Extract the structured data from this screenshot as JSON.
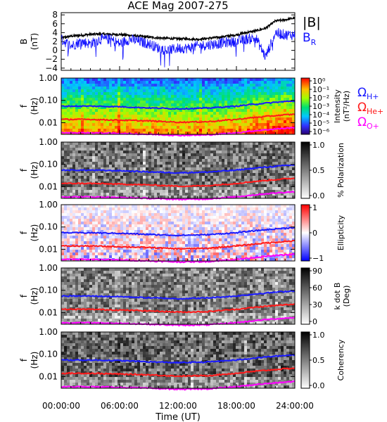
{
  "title": "ACE Mag 2007-275",
  "xlabel": "Time (UT)",
  "x_tick_labels": [
    "00:00:00",
    "06:00:00",
    "12:00:00",
    "18:00:00",
    "24:00:00"
  ],
  "colors": {
    "btotal": "#000000",
    "br": "#1010ff",
    "h_plus": "#1a1aff",
    "he_plus": "#ff1a1a",
    "o_plus": "#ff00ff"
  },
  "legends": {
    "b_total": "|B|",
    "b_r": "B",
    "b_r_sub": "R",
    "omega": "Ω",
    "h_sub": "H+",
    "he_sub": "He+",
    "o_sub": "O+"
  },
  "panels": {
    "b": {
      "ylabel_top": "B",
      "ylabel_bottom": "(nT)",
      "ticks": [
        "8",
        "6",
        "4",
        "2",
        "0",
        "−2",
        "−4"
      ]
    },
    "spec": {
      "ylabel_top": "f",
      "ylabel_bottom": "(Hz)",
      "ticks": [
        "1.00",
        "0.10",
        "0.01"
      ]
    },
    "intensity": {
      "cb_label": "Intensity",
      "cb_unit": "(nT²/Hz)",
      "cb_ticks": [
        "10⁰",
        "10⁻¹",
        "10⁻²",
        "10⁻³",
        "10⁻⁴",
        "10⁻⁵",
        "10⁻⁶"
      ]
    },
    "polarization": {
      "cb_label": "% Polarization",
      "cb_ticks": [
        "1.0",
        "0.5",
        "0.0"
      ]
    },
    "ellipticity": {
      "cb_label": "Ellipticity",
      "cb_ticks": [
        "1",
        "0",
        "−1"
      ]
    },
    "kdotb": {
      "cb_label": "k dot B",
      "cb_unit": "(Deg)",
      "cb_ticks": [
        "90",
        "60",
        "30",
        "0"
      ]
    },
    "coherency": {
      "cb_label": "Coherency",
      "cb_ticks": [
        "1.0",
        "0.5",
        "0.0"
      ]
    }
  },
  "chart_data": [
    {
      "type": "line",
      "title": "ACE Mag 2007-275",
      "xlabel": "Time (UT)",
      "ylabel": "B (nT)",
      "x_hours": [
        0,
        1,
        2,
        3,
        4,
        5,
        6,
        7,
        8,
        9,
        10,
        11,
        12,
        13,
        14,
        15,
        16,
        17,
        18,
        19,
        20,
        21,
        22,
        23,
        24
      ],
      "xlim": [
        0,
        24
      ],
      "ylim": [
        -4.5,
        8.5
      ],
      "series": [
        {
          "name": "|B|",
          "values": [
            2.8,
            3.2,
            3.4,
            3.6,
            3.7,
            3.6,
            3.6,
            3.4,
            3.2,
            3.0,
            2.8,
            2.7,
            2.6,
            2.6,
            2.5,
            2.7,
            2.9,
            3.2,
            3.5,
            4.0,
            4.4,
            5.0,
            6.6,
            6.9,
            7.3
          ]
        },
        {
          "name": "B_R",
          "values": [
            2.5,
            1.0,
            2.0,
            1.5,
            2.5,
            2.5,
            1.5,
            2.5,
            2.0,
            1.5,
            0.5,
            0.0,
            0.5,
            0.5,
            1.0,
            1.2,
            1.5,
            1.8,
            2.0,
            2.5,
            2.8,
            -1.5,
            4.0,
            3.5,
            3.5
          ]
        }
      ]
    },
    {
      "type": "heatmap",
      "name": "Intensity spectrogram",
      "xlabel": "Time (UT)",
      "ylabel": "f (Hz)",
      "y_scale": "log",
      "ylim": [
        0.003,
        1.0
      ],
      "colorbar": {
        "label": "Intensity (nT²/Hz)",
        "scale": "log",
        "range": [
          1e-06,
          1
        ]
      },
      "x_hours": [
        0,
        3,
        6,
        9,
        12,
        15,
        18,
        21,
        24
      ],
      "series": [
        {
          "name": "ΩH+",
          "values": [
            0.055,
            0.055,
            0.052,
            0.046,
            0.042,
            0.045,
            0.055,
            0.075,
            0.095
          ]
        },
        {
          "name": "ΩHe+",
          "values": [
            0.014,
            0.014,
            0.013,
            0.012,
            0.0105,
            0.011,
            0.014,
            0.019,
            0.024
          ]
        },
        {
          "name": "ΩO+",
          "values": [
            0.0035,
            0.0035,
            0.0033,
            0.003,
            0.0027,
            0.0028,
            0.0035,
            0.0048,
            0.006
          ]
        }
      ]
    },
    {
      "type": "heatmap",
      "name": "% Polarization",
      "y_scale": "log",
      "ylim": [
        0.003,
        1.0
      ],
      "colorbar": {
        "label": "% Polarization",
        "range": [
          0,
          1
        ]
      }
    },
    {
      "type": "heatmap",
      "name": "Ellipticity",
      "y_scale": "log",
      "ylim": [
        0.003,
        1.0
      ],
      "colorbar": {
        "label": "Ellipticity",
        "range": [
          -1,
          1
        ]
      }
    },
    {
      "type": "heatmap",
      "name": "k dot B",
      "y_scale": "log",
      "ylim": [
        0.003,
        1.0
      ],
      "colorbar": {
        "label": "k dot B (Deg)",
        "range": [
          0,
          90
        ]
      }
    },
    {
      "type": "heatmap",
      "name": "Coherency",
      "y_scale": "log",
      "ylim": [
        0.003,
        1.0
      ],
      "colorbar": {
        "label": "Coherency",
        "range": [
          0,
          1
        ]
      }
    }
  ]
}
